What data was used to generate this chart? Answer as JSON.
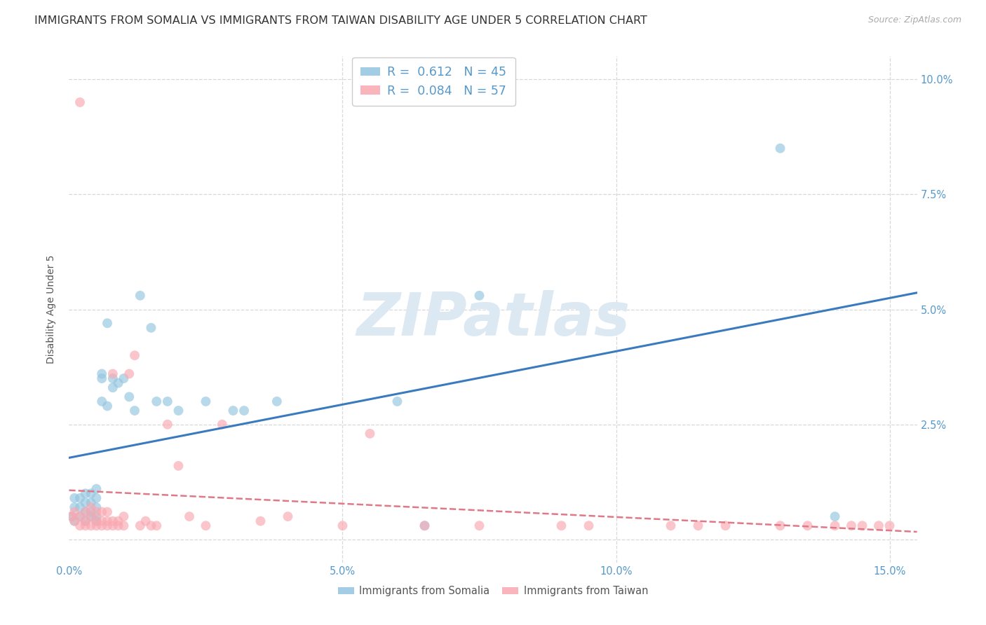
{
  "title": "IMMIGRANTS FROM SOMALIA VS IMMIGRANTS FROM TAIWAN DISABILITY AGE UNDER 5 CORRELATION CHART",
  "source": "Source: ZipAtlas.com",
  "ylabel": "Disability Age Under 5",
  "xlim": [
    0.0,
    0.155
  ],
  "ylim": [
    -0.005,
    0.105
  ],
  "plot_ylim": [
    0.0,
    0.1
  ],
  "yticks": [
    0.0,
    0.025,
    0.05,
    0.075,
    0.1
  ],
  "xticks": [
    0.0,
    0.05,
    0.1,
    0.15
  ],
  "ytick_labels_left": [
    "",
    "",
    "",
    "",
    ""
  ],
  "ytick_labels_right": [
    "",
    "2.5%",
    "5.0%",
    "7.5%",
    "10.0%"
  ],
  "xtick_labels": [
    "0.0%",
    "5.0%",
    "10.0%",
    "15.0%"
  ],
  "somalia_R": 0.612,
  "somalia_N": 45,
  "taiwan_R": 0.084,
  "taiwan_N": 57,
  "somalia_color": "#92c5e0",
  "taiwan_color": "#f9a8b0",
  "somalia_line_color": "#3a7abf",
  "taiwan_line_color": "#e07888",
  "watermark_text": "ZIPatlas",
  "watermark_color": "#dce8f2",
  "grid_color": "#d8d8d8",
  "tick_color": "#5599cc",
  "title_fontsize": 11.5,
  "label_fontsize": 10,
  "tick_fontsize": 10.5,
  "legend_fontsize": 12.5,
  "somalia_x": [
    0.0005,
    0.001,
    0.001,
    0.001,
    0.002,
    0.002,
    0.002,
    0.003,
    0.003,
    0.003,
    0.003,
    0.004,
    0.004,
    0.004,
    0.004,
    0.005,
    0.005,
    0.005,
    0.005,
    0.005,
    0.006,
    0.006,
    0.006,
    0.007,
    0.007,
    0.008,
    0.008,
    0.009,
    0.01,
    0.011,
    0.012,
    0.013,
    0.015,
    0.016,
    0.018,
    0.02,
    0.025,
    0.03,
    0.032,
    0.038,
    0.06,
    0.065,
    0.075,
    0.13,
    0.14
  ],
  "somalia_y": [
    0.005,
    0.004,
    0.007,
    0.009,
    0.005,
    0.007,
    0.009,
    0.004,
    0.006,
    0.008,
    0.01,
    0.005,
    0.006,
    0.008,
    0.01,
    0.004,
    0.005,
    0.007,
    0.009,
    0.011,
    0.035,
    0.036,
    0.03,
    0.029,
    0.047,
    0.035,
    0.033,
    0.034,
    0.035,
    0.031,
    0.028,
    0.053,
    0.046,
    0.03,
    0.03,
    0.028,
    0.03,
    0.028,
    0.028,
    0.03,
    0.03,
    0.003,
    0.053,
    0.085,
    0.005
  ],
  "taiwan_x": [
    0.0005,
    0.001,
    0.001,
    0.002,
    0.002,
    0.002,
    0.003,
    0.003,
    0.003,
    0.004,
    0.004,
    0.004,
    0.005,
    0.005,
    0.005,
    0.006,
    0.006,
    0.006,
    0.007,
    0.007,
    0.007,
    0.008,
    0.008,
    0.008,
    0.009,
    0.009,
    0.01,
    0.01,
    0.011,
    0.012,
    0.013,
    0.014,
    0.015,
    0.016,
    0.018,
    0.02,
    0.022,
    0.025,
    0.028,
    0.035,
    0.04,
    0.05,
    0.055,
    0.065,
    0.075,
    0.09,
    0.095,
    0.11,
    0.115,
    0.12,
    0.13,
    0.135,
    0.14,
    0.143,
    0.145,
    0.148,
    0.15
  ],
  "taiwan_y": [
    0.005,
    0.004,
    0.006,
    0.003,
    0.005,
    0.095,
    0.003,
    0.004,
    0.006,
    0.003,
    0.005,
    0.007,
    0.003,
    0.004,
    0.006,
    0.003,
    0.004,
    0.006,
    0.003,
    0.004,
    0.006,
    0.003,
    0.004,
    0.036,
    0.003,
    0.004,
    0.003,
    0.005,
    0.036,
    0.04,
    0.003,
    0.004,
    0.003,
    0.003,
    0.025,
    0.016,
    0.005,
    0.003,
    0.025,
    0.004,
    0.005,
    0.003,
    0.023,
    0.003,
    0.003,
    0.003,
    0.003,
    0.003,
    0.003,
    0.003,
    0.003,
    0.003,
    0.003,
    0.003,
    0.003,
    0.003,
    0.003
  ],
  "background_color": "#ffffff"
}
